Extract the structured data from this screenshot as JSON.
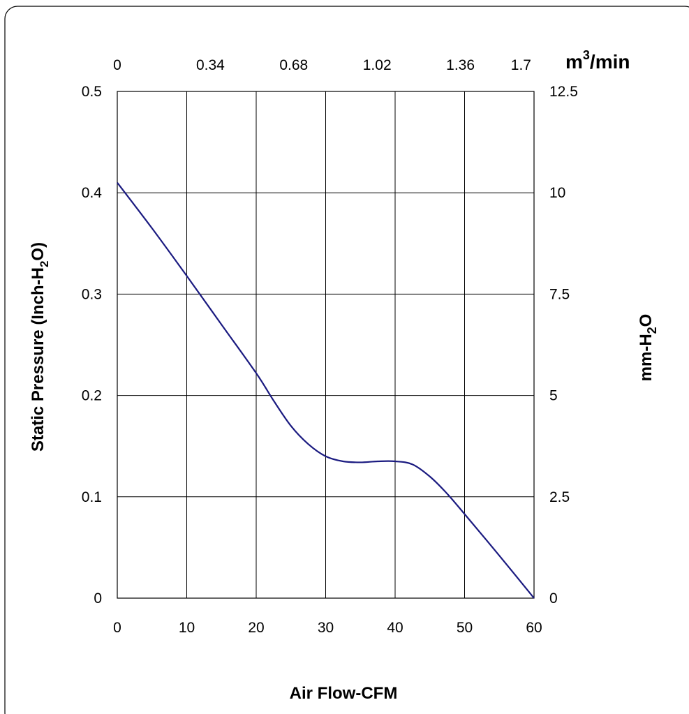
{
  "chart_data": {
    "type": "line",
    "xlabel": "Air Flow-CFM",
    "ylabel": "Static Pressure (Inch-H",
    "ylabel_sub": "2",
    "ylabel_end": "O)",
    "y2label": "mm-H",
    "y2label_sub": "2",
    "y2label_end": "O",
    "x2label_base": "m",
    "x2label_sup": "3",
    "x2label_end": "/min",
    "xlim": [
      0,
      60
    ],
    "ylim": [
      0,
      0.5
    ],
    "x_ticks": [
      "0",
      "10",
      "20",
      "30",
      "40",
      "50",
      "60"
    ],
    "y_ticks": [
      "0",
      "0.1",
      "0.2",
      "0.3",
      "0.4",
      "0.5"
    ],
    "x2_ticks": [
      "0",
      "0.34",
      "0.68",
      "1.02",
      "1.36",
      "1.7"
    ],
    "y2_ticks": [
      "0",
      "2.5",
      "5",
      "7.5",
      "10",
      "12.5"
    ],
    "grid": true,
    "line_color": "#1a1a80",
    "series": [
      {
        "x": [
          0,
          5,
          10,
          15,
          20,
          22.5,
          25,
          27.5,
          30,
          32.5,
          35,
          37.5,
          40,
          42.5,
          45,
          47.5,
          50,
          55,
          60
        ],
        "y": [
          0.41,
          0.365,
          0.318,
          0.27,
          0.222,
          0.195,
          0.17,
          0.152,
          0.14,
          0.135,
          0.134,
          0.135,
          0.135,
          0.132,
          0.12,
          0.103,
          0.083,
          0.042,
          0.0
        ]
      }
    ]
  }
}
